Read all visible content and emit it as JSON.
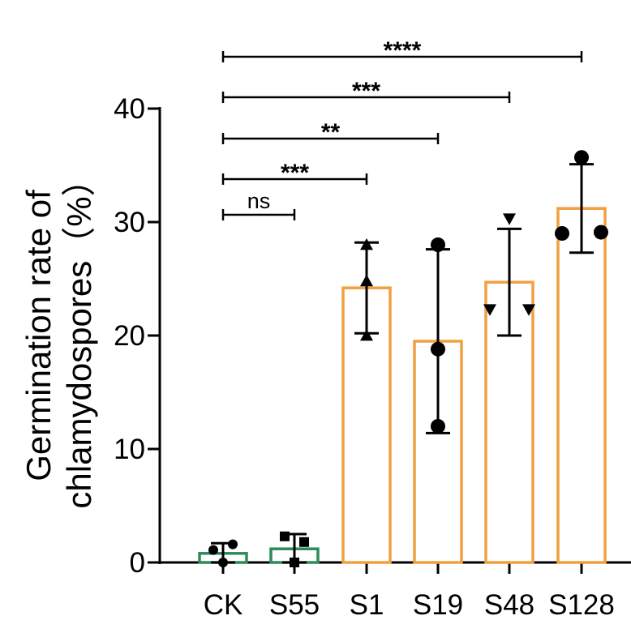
{
  "chart_data": {
    "type": "bar",
    "title": "",
    "xlabel": "",
    "ylabel": [
      "Germination rate of",
      "chlamydospores（%）"
    ],
    "ylim": [
      0,
      40
    ],
    "yticks": [
      0,
      10,
      20,
      30,
      40
    ],
    "ytick_labels": [
      "0",
      "10",
      "20",
      "30",
      "40"
    ],
    "grid": false,
    "categories": [
      "CK",
      "S55",
      "S1",
      "S19",
      "S48",
      "S128"
    ],
    "values": [
      0.8,
      1.2,
      24.2,
      19.5,
      24.7,
      31.2
    ],
    "error": [
      0.9,
      1.3,
      4.0,
      8.1,
      4.7,
      3.9
    ],
    "bar_colors": [
      "#2e8b57",
      "#2e8b57",
      "#f0a040",
      "#f0a040",
      "#f0a040",
      "#f0a040"
    ],
    "point_markers": [
      "circle",
      "square",
      "triangle-up",
      "circle",
      "triangle-down",
      "circle"
    ],
    "points": [
      [
        1.1,
        1.6,
        0.0
      ],
      [
        2.3,
        1.8,
        0.0
      ],
      [
        28.0,
        24.8,
        20.0
      ],
      [
        28.0,
        18.8,
        12.0
      ],
      [
        30.3,
        22.3,
        22.3
      ],
      [
        35.7,
        29.0,
        29.1
      ]
    ],
    "comparisons": [
      {
        "from": "CK",
        "to": "S55",
        "label": "ns"
      },
      {
        "from": "CK",
        "to": "S1",
        "label": "***"
      },
      {
        "from": "CK",
        "to": "S19",
        "label": "**"
      },
      {
        "from": "CK",
        "to": "S48",
        "label": "***"
      },
      {
        "from": "CK",
        "to": "S128",
        "label": "****"
      }
    ]
  }
}
